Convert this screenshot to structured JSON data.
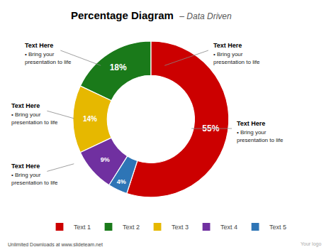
{
  "chart_data": {
    "type": "donut",
    "title": "Percentage Diagram",
    "subtitle": "– Data Driven",
    "categories": [
      "Text 1",
      "Text 2",
      "Text 3",
      "Text 4",
      "Text 5"
    ],
    "values": [
      55,
      18,
      14,
      9,
      4
    ],
    "value_labels": [
      "55%",
      "18%",
      "14%",
      "9%",
      "4%"
    ],
    "colors": [
      "#cc0000",
      "#1a7a1a",
      "#e6b800",
      "#7030a0",
      "#2e75b6"
    ],
    "data_labels": true,
    "legend": "bottom",
    "annotations": [
      [
        "Text Here",
        "• Bring your",
        "presentation to life"
      ],
      [
        "Text Here",
        "• Bring your",
        "presentation to life"
      ],
      [
        "Text Here",
        "• Bring your",
        "presentation to life"
      ],
      [
        "Text Here",
        "• Bring your",
        "presentation to life"
      ],
      [
        "Text Here",
        "• Bring your",
        "presentation to life"
      ],
      [
        "Unlimited Downloads at www.slideteam.net"
      ],
      [
        "Your logo"
      ]
    ]
  }
}
